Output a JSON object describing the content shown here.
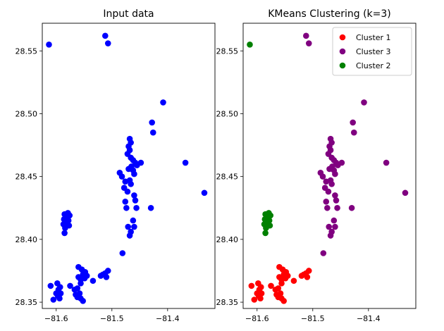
{
  "chart_data": [
    {
      "type": "scatter",
      "title": "Input data",
      "xlabel": "",
      "ylabel": "",
      "xlim": [
        -81.625,
        -81.315
      ],
      "ylim": [
        28.345,
        28.572
      ],
      "xticks": [
        -81.6,
        -81.5,
        -81.4
      ],
      "xtick_labels": [
        "−81.6",
        "−81.5",
        "−81.4"
      ],
      "yticks": [
        28.35,
        28.4,
        28.45,
        28.5,
        28.55
      ],
      "ytick_labels": [
        "28.35",
        "28.40",
        "28.45",
        "28.50",
        "28.55"
      ],
      "grid": false,
      "series": [
        {
          "color": "#0000ff",
          "points": [
            [
              -81.613,
              28.555
            ],
            [
              -81.512,
              28.562
            ],
            [
              -81.507,
              28.556
            ],
            [
              -81.408,
              28.509
            ],
            [
              -81.428,
              28.493
            ],
            [
              -81.426,
              28.485
            ],
            [
              -81.368,
              28.461
            ],
            [
              -81.334,
              28.437
            ],
            [
              -81.43,
              28.425
            ],
            [
              -81.468,
              28.48
            ],
            [
              -81.466,
              28.477
            ],
            [
              -81.47,
              28.474
            ],
            [
              -81.468,
              28.471
            ],
            [
              -81.472,
              28.468
            ],
            [
              -81.466,
              28.465
            ],
            [
              -81.462,
              28.463
            ],
            [
              -81.458,
              28.461
            ],
            [
              -81.455,
              28.459
            ],
            [
              -81.465,
              28.458
            ],
            [
              -81.47,
              28.456
            ],
            [
              -81.462,
              28.455
            ],
            [
              -81.46,
              28.452
            ],
            [
              -81.448,
              28.461
            ],
            [
              -81.468,
              28.447
            ],
            [
              -81.466,
              28.444
            ],
            [
              -81.486,
              28.453
            ],
            [
              -81.482,
              28.45
            ],
            [
              -81.476,
              28.446
            ],
            [
              -81.478,
              28.441
            ],
            [
              -81.472,
              28.438
            ],
            [
              -81.476,
              28.43
            ],
            [
              -81.474,
              28.425
            ],
            [
              -81.46,
              28.435
            ],
            [
              -81.458,
              28.431
            ],
            [
              -81.456,
              28.425
            ],
            [
              -81.462,
              28.415
            ],
            [
              -81.46,
              28.41
            ],
            [
              -81.466,
              28.406
            ],
            [
              -81.468,
              28.403
            ],
            [
              -81.471,
              28.41
            ],
            [
              -81.481,
              28.389
            ],
            [
              -81.585,
              28.42
            ],
            [
              -81.582,
              28.418
            ],
            [
              -81.579,
              28.421
            ],
            [
              -81.576,
              28.419
            ],
            [
              -81.586,
              28.416
            ],
            [
              -81.583,
              28.414
            ],
            [
              -81.578,
              28.415
            ],
            [
              -81.577,
              28.411
            ],
            [
              -81.584,
              28.409
            ],
            [
              -81.587,
              28.412
            ],
            [
              -81.585,
              28.405
            ],
            [
              -81.58,
              28.417
            ],
            [
              -81.61,
              28.363
            ],
            [
              -81.598,
              28.365
            ],
            [
              -81.596,
              28.36
            ],
            [
              -81.593,
              28.362
            ],
            [
              -81.6,
              28.357
            ],
            [
              -81.597,
              28.355
            ],
            [
              -81.594,
              28.353
            ],
            [
              -81.592,
              28.357
            ],
            [
              -81.605,
              28.352
            ],
            [
              -81.575,
              28.363
            ],
            [
              -81.567,
              28.36
            ],
            [
              -81.565,
              28.356
            ],
            [
              -81.562,
              28.354
            ],
            [
              -81.558,
              28.357
            ],
            [
              -81.562,
              28.361
            ],
            [
              -81.556,
              28.353
            ],
            [
              -81.552,
              28.351
            ],
            [
              -81.56,
              28.37
            ],
            [
              -81.556,
              28.368
            ],
            [
              -81.552,
              28.372
            ],
            [
              -81.548,
              28.374
            ],
            [
              -81.554,
              28.376
            ],
            [
              -81.549,
              28.369
            ],
            [
              -81.56,
              28.378
            ],
            [
              -81.556,
              28.365
            ],
            [
              -81.545,
              28.371
            ],
            [
              -81.534,
              28.367
            ],
            [
              -81.52,
              28.371
            ],
            [
              -81.516,
              28.372
            ],
            [
              -81.512,
              28.373
            ],
            [
              -81.507,
              28.375
            ],
            [
              -81.51,
              28.37
            ]
          ]
        }
      ]
    },
    {
      "type": "scatter",
      "title": "KMeans Clustering (k=3)",
      "xlabel": "",
      "ylabel": "",
      "xlim": [
        -81.625,
        -81.315
      ],
      "ylim": [
        28.345,
        28.572
      ],
      "xticks": [
        -81.6,
        -81.5,
        -81.4
      ],
      "xtick_labels": [
        "−81.6",
        "−81.5",
        "−81.4"
      ],
      "yticks": [
        28.35,
        28.4,
        28.45,
        28.5,
        28.55
      ],
      "ytick_labels": [
        "28.35",
        "28.40",
        "28.45",
        "28.50",
        "28.55"
      ],
      "grid": false,
      "legend": "top-right",
      "series": [
        {
          "name": "Cluster 1",
          "color": "#ff0000",
          "points": [
            [
              -81.61,
              28.363
            ],
            [
              -81.598,
              28.365
            ],
            [
              -81.596,
              28.36
            ],
            [
              -81.593,
              28.362
            ],
            [
              -81.6,
              28.357
            ],
            [
              -81.597,
              28.355
            ],
            [
              -81.594,
              28.353
            ],
            [
              -81.592,
              28.357
            ],
            [
              -81.605,
              28.352
            ],
            [
              -81.575,
              28.363
            ],
            [
              -81.567,
              28.36
            ],
            [
              -81.565,
              28.356
            ],
            [
              -81.562,
              28.354
            ],
            [
              -81.558,
              28.357
            ],
            [
              -81.562,
              28.361
            ],
            [
              -81.556,
              28.353
            ],
            [
              -81.552,
              28.351
            ],
            [
              -81.56,
              28.37
            ],
            [
              -81.556,
              28.368
            ],
            [
              -81.552,
              28.372
            ],
            [
              -81.548,
              28.374
            ],
            [
              -81.554,
              28.376
            ],
            [
              -81.549,
              28.369
            ],
            [
              -81.56,
              28.378
            ],
            [
              -81.556,
              28.365
            ],
            [
              -81.545,
              28.371
            ],
            [
              -81.534,
              28.367
            ],
            [
              -81.52,
              28.371
            ],
            [
              -81.516,
              28.372
            ],
            [
              -81.512,
              28.373
            ],
            [
              -81.507,
              28.375
            ],
            [
              -81.51,
              28.37
            ]
          ]
        },
        {
          "name": "Cluster 3",
          "color": "#800080",
          "points": [
            [
              -81.512,
              28.562
            ],
            [
              -81.507,
              28.556
            ],
            [
              -81.408,
              28.509
            ],
            [
              -81.428,
              28.493
            ],
            [
              -81.426,
              28.485
            ],
            [
              -81.368,
              28.461
            ],
            [
              -81.334,
              28.437
            ],
            [
              -81.43,
              28.425
            ],
            [
              -81.468,
              28.48
            ],
            [
              -81.466,
              28.477
            ],
            [
              -81.47,
              28.474
            ],
            [
              -81.468,
              28.471
            ],
            [
              -81.472,
              28.468
            ],
            [
              -81.466,
              28.465
            ],
            [
              -81.462,
              28.463
            ],
            [
              -81.458,
              28.461
            ],
            [
              -81.455,
              28.459
            ],
            [
              -81.465,
              28.458
            ],
            [
              -81.47,
              28.456
            ],
            [
              -81.462,
              28.455
            ],
            [
              -81.46,
              28.452
            ],
            [
              -81.448,
              28.461
            ],
            [
              -81.468,
              28.447
            ],
            [
              -81.466,
              28.444
            ],
            [
              -81.486,
              28.453
            ],
            [
              -81.482,
              28.45
            ],
            [
              -81.476,
              28.446
            ],
            [
              -81.478,
              28.441
            ],
            [
              -81.472,
              28.438
            ],
            [
              -81.476,
              28.43
            ],
            [
              -81.474,
              28.425
            ],
            [
              -81.46,
              28.435
            ],
            [
              -81.458,
              28.431
            ],
            [
              -81.456,
              28.425
            ],
            [
              -81.462,
              28.415
            ],
            [
              -81.46,
              28.41
            ],
            [
              -81.466,
              28.406
            ],
            [
              -81.468,
              28.403
            ],
            [
              -81.471,
              28.41
            ],
            [
              -81.481,
              28.389
            ]
          ]
        },
        {
          "name": "Cluster 2",
          "color": "#008000",
          "points": [
            [
              -81.613,
              28.555
            ],
            [
              -81.585,
              28.42
            ],
            [
              -81.582,
              28.418
            ],
            [
              -81.579,
              28.421
            ],
            [
              -81.576,
              28.419
            ],
            [
              -81.586,
              28.416
            ],
            [
              -81.583,
              28.414
            ],
            [
              -81.578,
              28.415
            ],
            [
              -81.577,
              28.411
            ],
            [
              -81.584,
              28.409
            ],
            [
              -81.587,
              28.412
            ],
            [
              -81.585,
              28.405
            ],
            [
              -81.58,
              28.417
            ]
          ]
        }
      ]
    }
  ]
}
